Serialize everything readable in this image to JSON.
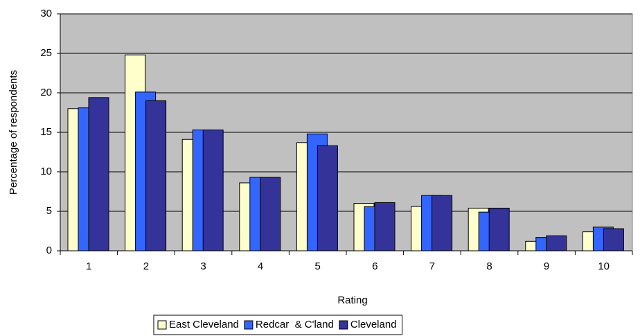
{
  "chart_data": {
    "type": "bar",
    "x_label": "Rating",
    "y_label": "Percentage of respondents",
    "categories": [
      "1",
      "2",
      "3",
      "4",
      "5",
      "6",
      "7",
      "8",
      "9",
      "10"
    ],
    "series": [
      {
        "name": "East Cleveland",
        "color": "#ffffcc",
        "values": [
          18.0,
          24.8,
          14.1,
          8.6,
          13.7,
          6.0,
          5.6,
          5.4,
          1.2,
          2.4
        ]
      },
      {
        "name": "Redcar  & C'land",
        "color": "#3366ff",
        "values": [
          18.1,
          20.1,
          15.3,
          9.3,
          14.8,
          5.6,
          7.0,
          4.9,
          1.7,
          3.0
        ]
      },
      {
        "name": "Cleveland",
        "color": "#333399",
        "values": [
          19.4,
          19.0,
          15.3,
          9.3,
          13.3,
          6.1,
          7.0,
          5.4,
          1.9,
          2.8
        ]
      }
    ],
    "ylim": [
      0,
      30
    ],
    "yticks": [
      0,
      5,
      10,
      15,
      20,
      25,
      30
    ],
    "grid": true,
    "plot_background": "#c0c0c0",
    "legend": "bottom"
  }
}
